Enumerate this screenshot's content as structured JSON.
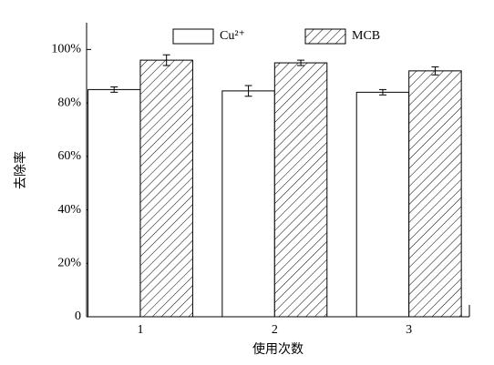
{
  "chart_data": {
    "type": "bar",
    "x_label": "使用次数",
    "y_label": "去除率",
    "x": [
      1,
      2,
      3
    ],
    "xlim": [
      0.6,
      3.45
    ],
    "xticks": [
      1,
      2,
      3
    ],
    "ylim": [
      0,
      110
    ],
    "yticks": [
      0,
      {
        "value": 20,
        "label": "20%"
      },
      {
        "value": 40,
        "label": "40%"
      },
      {
        "value": 60,
        "label": "60%"
      },
      {
        "value": 80,
        "label": "80%"
      },
      {
        "value": 100,
        "label": "100%"
      }
    ],
    "series": [
      {
        "name": "Cu²⁺",
        "color": "#ffffff",
        "pattern": "none",
        "values": [
          85,
          84.5,
          84
        ],
        "errors": [
          1,
          2,
          1
        ]
      },
      {
        "name": "MCB",
        "color": "#ffffff",
        "pattern": "hatch",
        "values": [
          96,
          95,
          92
        ],
        "errors": [
          2,
          1,
          1.5
        ]
      }
    ],
    "legend": "top"
  }
}
